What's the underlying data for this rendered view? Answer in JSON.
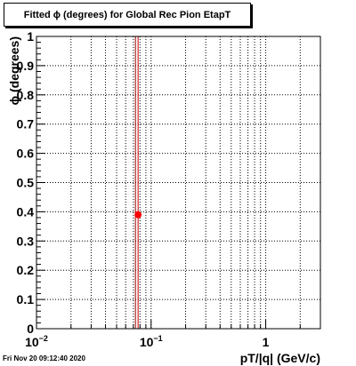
{
  "chart_data": {
    "type": "scatter",
    "title": "Fitted ϕ (degrees) for Global Rec Pion EtapT",
    "xlabel": "pT/|q| (GeV/c)",
    "ylabel": "ϕ (degrees)",
    "xscale": "log",
    "xlim": [
      0.01,
      3
    ],
    "ylim": [
      0,
      1
    ],
    "x_ticks": [
      {
        "value": 0.01,
        "base": "10",
        "exp": "−2"
      },
      {
        "value": 0.1,
        "base": "10",
        "exp": "−1"
      },
      {
        "value": 1,
        "base": "1",
        "exp": ""
      }
    ],
    "y_ticks": [
      "0",
      "0.1",
      "0.2",
      "0.3",
      "0.4",
      "0.5",
      "0.6",
      "0.7",
      "0.8",
      "0.9",
      "1"
    ],
    "grid": true,
    "series": [
      {
        "points": [
          {
            "x": 0.077,
            "y": 0.39
          }
        ],
        "color": "#ff0000"
      }
    ],
    "vertical_lines": [
      {
        "x": 0.073,
        "color": "#990000"
      },
      {
        "x": 0.077,
        "color": "#cc0000"
      }
    ]
  },
  "footer": {
    "timestamp": "Fri Nov 20 09:12:40 2020"
  }
}
